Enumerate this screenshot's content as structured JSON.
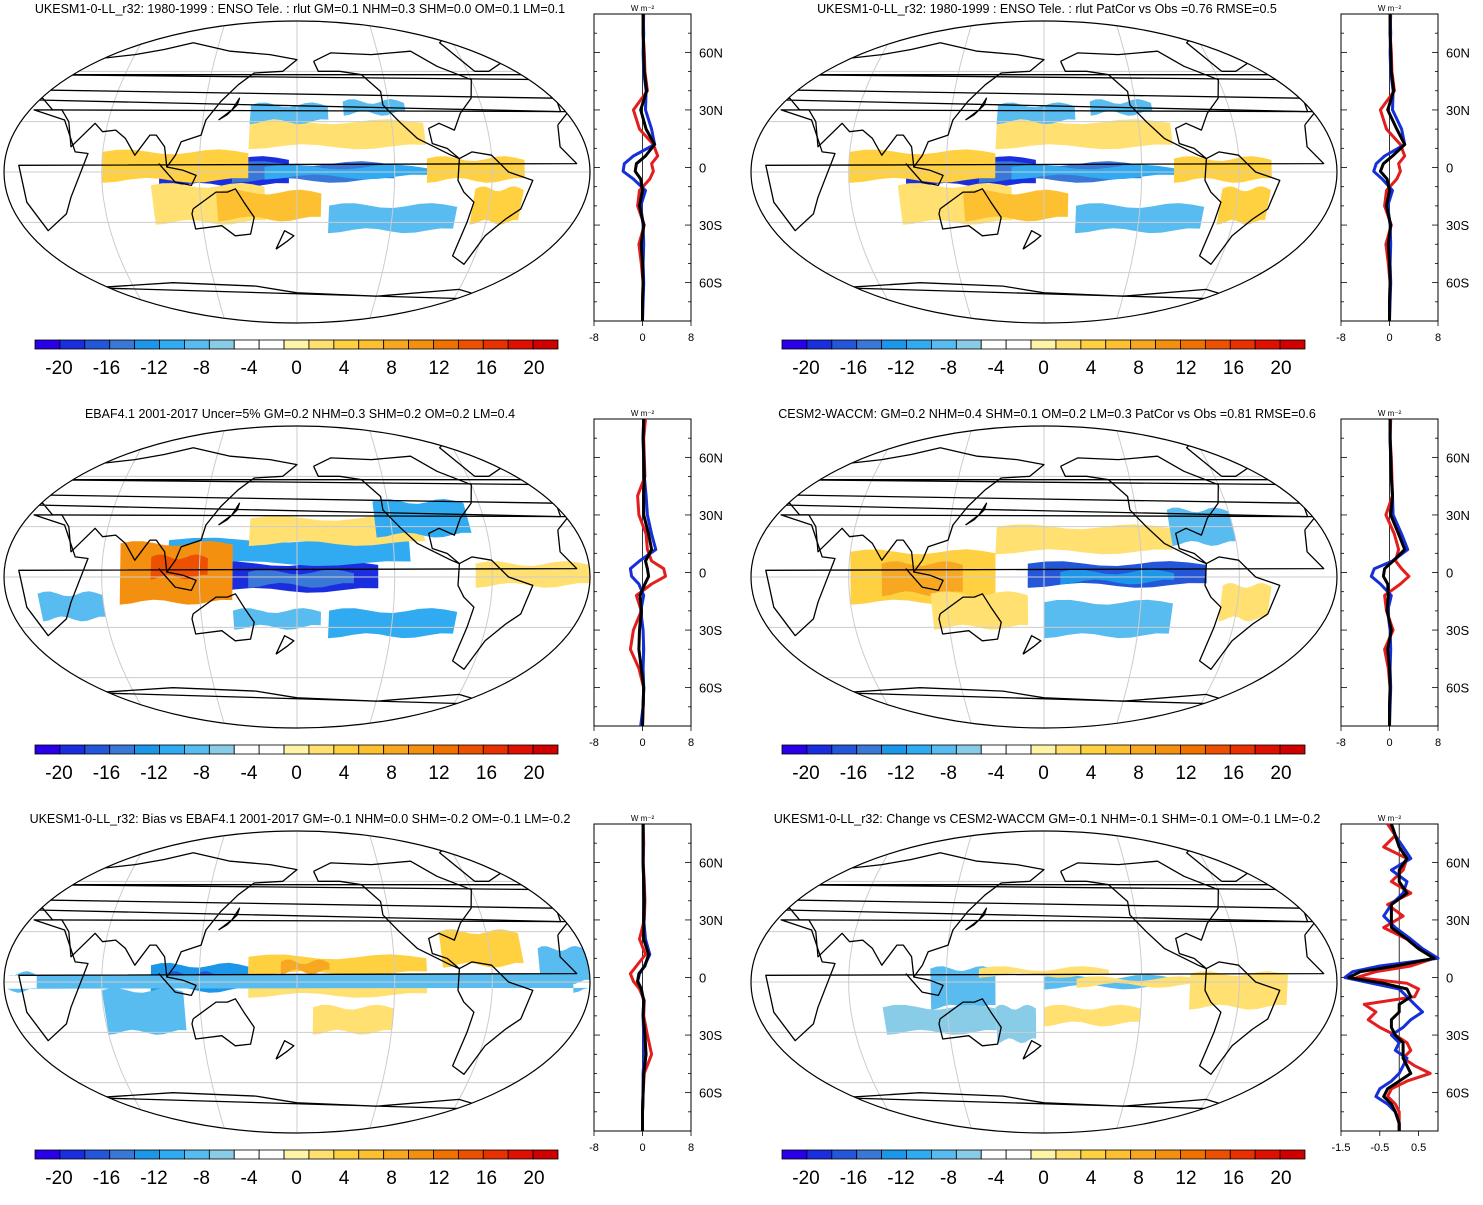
{
  "colorbar": {
    "colors": [
      "#2a00e8",
      "#1a2ee0",
      "#2356d8",
      "#3a78d8",
      "#1c96e8",
      "#30aaf0",
      "#58bcf0",
      "#88cce8",
      "#ffffff",
      "#ffffff",
      "#fff3a8",
      "#ffe070",
      "#ffd040",
      "#fcc030",
      "#f8a820",
      "#f49010",
      "#f07000",
      "#ec5000",
      "#e83000",
      "#e01000",
      "#d00000"
    ],
    "tick_labels": [
      "-20",
      "-16",
      "-12",
      "-8",
      "-4",
      "0",
      "4",
      "8",
      "12",
      "16",
      "20"
    ]
  },
  "chart_data": [
    {
      "type": "heatmap",
      "title": "UKESM1-0-LL_r32: 1980-1999 : ENSO Tele. : rlut GM=0.1 NHM=0.3 SHM=0.0 OM=0.1 LM=0.1",
      "units": "W m⁻²",
      "lat_labels": [
        "60N",
        "30N",
        "0",
        "30S",
        "60S"
      ],
      "lat_values": [
        60,
        30,
        0,
        -30,
        -60
      ],
      "zonal_xlim": [
        -8,
        8
      ],
      "zonal_xticks": [
        "-8",
        "0",
        "8"
      ],
      "series": [
        {
          "name": "red",
          "lat": [
            80,
            70,
            60,
            50,
            40,
            30,
            20,
            12,
            6,
            2,
            -2,
            -6,
            -12,
            -20,
            -30,
            -40,
            -50,
            -60,
            -70,
            -80
          ],
          "values": [
            0.2,
            0.1,
            0.3,
            0.4,
            0.8,
            -1.5,
            -0.5,
            1.8,
            2.5,
            1.5,
            1.8,
            1.2,
            -0.5,
            -0.8,
            0.3,
            -0.6,
            -0.2,
            0.1,
            0.0,
            0.0
          ]
        },
        {
          "name": "blue",
          "lat": [
            80,
            70,
            60,
            50,
            40,
            30,
            20,
            12,
            6,
            2,
            -2,
            -6,
            -12,
            -20,
            -30,
            -40,
            -50,
            -60,
            -70,
            -80
          ],
          "values": [
            0.1,
            0.2,
            0.1,
            0.2,
            0.6,
            0.5,
            1.5,
            2.0,
            -1.5,
            -3.0,
            -3.2,
            -1.5,
            0.5,
            -0.3,
            0.1,
            0.2,
            0.1,
            0.2,
            0.1,
            0.0
          ]
        },
        {
          "name": "black",
          "lat": [
            80,
            70,
            60,
            50,
            40,
            30,
            20,
            12,
            6,
            2,
            -2,
            -6,
            -12,
            -20,
            -30,
            -40,
            -50,
            -60,
            -70,
            -80
          ],
          "values": [
            0.1,
            0.1,
            0.2,
            0.3,
            0.7,
            -0.3,
            0.6,
            2.0,
            0.5,
            -1.0,
            -1.2,
            -0.3,
            0.0,
            -0.5,
            0.2,
            -0.2,
            0.0,
            0.1,
            0.0,
            0.0
          ]
        }
      ]
    },
    {
      "type": "heatmap",
      "title": "UKESM1-0-LL_r32: 1980-1999 : ENSO Tele. : rlut PatCor vs Obs =0.76 RMSE=0.5",
      "units": "W m⁻²",
      "lat_labels": [
        "60N",
        "30N",
        "0",
        "30S",
        "60S"
      ],
      "lat_values": [
        60,
        30,
        0,
        -30,
        -60
      ],
      "zonal_xlim": [
        -8,
        8
      ],
      "zonal_xticks": [
        "-8",
        "0",
        "8"
      ],
      "series": [
        {
          "name": "red",
          "lat": [
            80,
            70,
            60,
            50,
            40,
            30,
            20,
            12,
            6,
            2,
            -2,
            -6,
            -12,
            -20,
            -30,
            -40,
            -50,
            -60,
            -70,
            -80
          ],
          "values": [
            0.2,
            0.1,
            0.3,
            0.4,
            0.8,
            -1.5,
            -0.5,
            1.8,
            2.5,
            1.5,
            1.8,
            1.2,
            -0.5,
            -0.8,
            0.3,
            -0.6,
            -0.2,
            0.1,
            0.0,
            0.0
          ]
        },
        {
          "name": "blue",
          "lat": [
            80,
            70,
            60,
            50,
            40,
            30,
            20,
            12,
            6,
            2,
            -2,
            -6,
            -12,
            -20,
            -30,
            -40,
            -50,
            -60,
            -70,
            -80
          ],
          "values": [
            0.1,
            0.2,
            0.1,
            0.2,
            0.6,
            0.5,
            2.0,
            2.5,
            -0.8,
            -2.2,
            -2.6,
            -1.2,
            0.5,
            -0.3,
            0.1,
            0.2,
            0.1,
            0.2,
            0.1,
            0.0
          ]
        },
        {
          "name": "black",
          "lat": [
            80,
            70,
            60,
            50,
            40,
            30,
            20,
            12,
            6,
            2,
            -2,
            -6,
            -12,
            -20,
            -30,
            -40,
            -50,
            -60,
            -70,
            -80
          ],
          "values": [
            0.1,
            0.1,
            0.2,
            0.3,
            0.7,
            -0.3,
            1.2,
            2.5,
            0.5,
            -1.0,
            -1.5,
            -0.4,
            0.0,
            -0.5,
            0.2,
            -0.2,
            0.0,
            0.1,
            0.0,
            0.0
          ]
        }
      ]
    },
    {
      "type": "heatmap",
      "title": "EBAF4.1 2001-2017 Uncer=5% GM=0.2 NHM=0.3 SHM=0.2 OM=0.2 LM=0.4",
      "units": "W m⁻²",
      "lat_labels": [
        "60N",
        "30N",
        "0",
        "30S",
        "60S"
      ],
      "lat_values": [
        60,
        30,
        0,
        -30,
        -60
      ],
      "zonal_xlim": [
        -8,
        8
      ],
      "zonal_xticks": [
        "-8",
        "0",
        "8"
      ],
      "series": [
        {
          "name": "red",
          "lat": [
            80,
            70,
            60,
            50,
            40,
            30,
            20,
            12,
            6,
            2,
            -2,
            -6,
            -12,
            -20,
            -30,
            -40,
            -50,
            -60,
            -70,
            -80
          ],
          "values": [
            0.5,
            0.2,
            0.3,
            0.4,
            -0.8,
            -0.6,
            0.6,
            0.8,
            1.5,
            3.5,
            3.8,
            1.5,
            -1.0,
            -0.2,
            -1.5,
            -2.0,
            -0.6,
            0.2,
            0.1,
            0.0
          ]
        },
        {
          "name": "blue",
          "lat": [
            80,
            70,
            60,
            50,
            40,
            30,
            20,
            12,
            6,
            2,
            -2,
            -6,
            -12,
            -20,
            -30,
            -40,
            -50,
            -60,
            -70,
            -80
          ],
          "values": [
            0.2,
            0.1,
            0.2,
            0.3,
            0.6,
            0.8,
            1.5,
            2.2,
            -0.5,
            -2.0,
            -1.8,
            -0.6,
            0.2,
            -0.3,
            0.1,
            0.2,
            0.1,
            0.2,
            0.1,
            -0.3
          ]
        },
        {
          "name": "black",
          "lat": [
            80,
            70,
            60,
            50,
            40,
            30,
            20,
            12,
            6,
            2,
            -2,
            -6,
            -12,
            -20,
            -30,
            -40,
            -50,
            -60,
            -70,
            -80
          ],
          "values": [
            0.2,
            0.1,
            0.2,
            0.3,
            0.2,
            0.2,
            1.0,
            1.5,
            0.5,
            0.8,
            1.0,
            0.4,
            -0.4,
            -0.2,
            -0.5,
            -0.6,
            -0.2,
            0.2,
            0.1,
            0.0
          ]
        }
      ]
    },
    {
      "type": "heatmap",
      "title": "CESM2-WACCM: GM=0.2 NHM=0.4 SHM=0.1 OM=0.2 LM=0.3 PatCor vs Obs =0.81 RMSE=0.6",
      "units": "W m⁻²",
      "lat_labels": [
        "60N",
        "30N",
        "0",
        "30S",
        "60S"
      ],
      "lat_values": [
        60,
        30,
        0,
        -30,
        -60
      ],
      "zonal_xlim": [
        -8,
        8
      ],
      "zonal_xticks": [
        "-8",
        "0",
        "8"
      ],
      "series": [
        {
          "name": "red",
          "lat": [
            80,
            70,
            60,
            50,
            40,
            30,
            20,
            12,
            6,
            2,
            -2,
            -6,
            -12,
            -20,
            -30,
            -40,
            -50,
            -60,
            -70,
            -80
          ],
          "values": [
            0.2,
            0.1,
            0.3,
            0.4,
            0.5,
            -0.6,
            0.8,
            1.5,
            1.0,
            2.0,
            3.2,
            1.8,
            -0.8,
            -0.5,
            0.6,
            -0.8,
            -0.2,
            0.1,
            0.0,
            0.0
          ]
        },
        {
          "name": "blue",
          "lat": [
            80,
            70,
            60,
            50,
            40,
            30,
            20,
            12,
            6,
            2,
            -2,
            -6,
            -12,
            -20,
            -30,
            -40,
            -50,
            -60,
            -70,
            -80
          ],
          "values": [
            0.1,
            0.1,
            0.2,
            0.3,
            0.5,
            0.6,
            2.0,
            3.0,
            0.5,
            -2.5,
            -3.0,
            -1.5,
            0.3,
            -0.3,
            0.1,
            0.2,
            0.1,
            0.2,
            0.1,
            0.0
          ]
        },
        {
          "name": "black",
          "lat": [
            80,
            70,
            60,
            50,
            40,
            30,
            20,
            12,
            6,
            2,
            -2,
            -6,
            -12,
            -20,
            -30,
            -40,
            -50,
            -60,
            -70,
            -80
          ],
          "values": [
            0.1,
            0.1,
            0.2,
            0.3,
            0.5,
            0.2,
            1.5,
            2.5,
            0.6,
            -0.8,
            -1.0,
            -0.3,
            -0.2,
            -0.4,
            0.3,
            -0.3,
            0.0,
            0.1,
            0.0,
            0.0
          ]
        }
      ]
    },
    {
      "type": "heatmap",
      "title": "UKESM1-0-LL_r32: Bias vs EBAF4.1 2001-2017 GM=-0.1 NHM=0.0 SHM=-0.2 OM=-0.1 LM=-0.2",
      "units": "W m⁻²",
      "lat_labels": [
        "60N",
        "30N",
        "0",
        "30S",
        "60S"
      ],
      "lat_values": [
        60,
        30,
        0,
        -30,
        -60
      ],
      "zonal_xlim": [
        -8,
        8
      ],
      "zonal_xticks": [
        "-8",
        "0",
        "8"
      ],
      "series": [
        {
          "name": "red",
          "lat": [
            80,
            70,
            60,
            50,
            40,
            30,
            20,
            12,
            6,
            2,
            -2,
            -6,
            -12,
            -20,
            -30,
            -40,
            -50,
            -60,
            -70,
            -80
          ],
          "values": [
            0.1,
            0.2,
            0.1,
            0.3,
            0.4,
            0.3,
            -0.5,
            0.5,
            -1.0,
            -2.0,
            -1.5,
            -0.5,
            0.3,
            0.2,
            0.8,
            1.5,
            0.3,
            0.1,
            0.0,
            0.0
          ]
        },
        {
          "name": "blue",
          "lat": [
            80,
            70,
            60,
            50,
            40,
            30,
            20,
            12,
            6,
            2,
            -2,
            -6,
            -12,
            -20,
            -30,
            -40,
            -50,
            -60,
            -70,
            -80
          ],
          "values": [
            0.1,
            0.1,
            0.1,
            0.2,
            0.3,
            0.2,
            0.5,
            1.2,
            0.3,
            -0.5,
            -0.8,
            -0.2,
            0.2,
            0.1,
            0.2,
            0.3,
            0.1,
            0.1,
            0.0,
            0.0
          ]
        },
        {
          "name": "black",
          "lat": [
            80,
            70,
            60,
            50,
            40,
            30,
            20,
            12,
            6,
            2,
            -2,
            -6,
            -12,
            -20,
            -30,
            -40,
            -50,
            -60,
            -70,
            -80
          ],
          "values": [
            0.1,
            0.1,
            0.1,
            0.2,
            0.3,
            0.2,
            0.2,
            1.0,
            0.4,
            -0.6,
            -0.8,
            -0.2,
            0.2,
            0.1,
            0.4,
            0.6,
            0.2,
            0.1,
            0.0,
            0.0
          ]
        }
      ]
    },
    {
      "type": "heatmap",
      "title": "UKESM1-0-LL_r32: Change vs CESM2-WACCM GM=-0.1 NHM=-0.1 SHM=-0.1 OM=-0.1 LM=-0.2",
      "units": "W m⁻²",
      "lat_labels": [
        "60N",
        "30N",
        "0",
        "30S",
        "60S"
      ],
      "lat_values": [
        60,
        30,
        0,
        -30,
        -60
      ],
      "zonal_xlim": [
        -1.5,
        1.0
      ],
      "zonal_xticks": [
        "-1.5",
        "-0.5",
        "0.5"
      ],
      "series": [
        {
          "name": "red",
          "lat": [
            80,
            74,
            68,
            62,
            56,
            50,
            44,
            38,
            32,
            26,
            20,
            15,
            10,
            6,
            3,
            0,
            -3,
            -6,
            -10,
            -14,
            -18,
            -22,
            -26,
            -30,
            -34,
            -38,
            -42,
            -46,
            -50,
            -54,
            -58,
            -62,
            -66,
            -70,
            -76,
            -80
          ],
          "values": [
            -0.3,
            -0.1,
            -0.4,
            0.2,
            0.1,
            -0.2,
            0.3,
            -0.3,
            0.1,
            -0.4,
            0.2,
            0.5,
            0.9,
            0.3,
            -0.6,
            -1.1,
            0.2,
            0.5,
            0.4,
            -0.9,
            -0.6,
            -0.8,
            -0.5,
            -0.1,
            0.2,
            0.3,
            0.1,
            0.4,
            0.8,
            0.2,
            -0.2,
            -0.3,
            -0.1,
            0.0,
            0.0,
            0.0
          ]
        },
        {
          "name": "blue",
          "lat": [
            80,
            74,
            68,
            62,
            56,
            50,
            44,
            38,
            32,
            26,
            20,
            15,
            10,
            6,
            3,
            0,
            -3,
            -6,
            -10,
            -14,
            -18,
            -22,
            -26,
            -30,
            -34,
            -38,
            -42,
            -46,
            -50,
            -54,
            -58,
            -62,
            -66,
            -70,
            -76,
            -80
          ],
          "values": [
            -0.2,
            -0.1,
            0.1,
            0.3,
            -0.2,
            0.2,
            0.1,
            -0.2,
            -0.4,
            -0.1,
            0.3,
            0.6,
            1.0,
            -0.5,
            -1.2,
            -1.4,
            -0.7,
            0.0,
            0.2,
            0.4,
            0.6,
            0.3,
            0.1,
            -0.2,
            0.0,
            -0.1,
            0.2,
            0.1,
            0.0,
            -0.2,
            -0.5,
            -0.6,
            -0.3,
            -0.1,
            0.0,
            0.0
          ]
        },
        {
          "name": "black",
          "lat": [
            80,
            74,
            68,
            62,
            56,
            50,
            44,
            38,
            32,
            26,
            20,
            15,
            10,
            6,
            3,
            0,
            -3,
            -6,
            -10,
            -14,
            -18,
            -22,
            -26,
            -30,
            -34,
            -38,
            -42,
            -46,
            -50,
            -54,
            -58,
            -62,
            -66,
            -70,
            -76,
            -80
          ],
          "values": [
            -0.2,
            -0.1,
            0.0,
            0.2,
            0.0,
            0.0,
            0.2,
            -0.2,
            -0.2,
            -0.2,
            0.2,
            0.5,
            0.9,
            -0.1,
            -1.0,
            -1.3,
            -0.4,
            0.2,
            0.3,
            0.0,
            0.0,
            -0.2,
            -0.2,
            -0.1,
            0.1,
            0.1,
            0.1,
            0.2,
            0.3,
            0.0,
            -0.3,
            -0.4,
            -0.2,
            -0.1,
            0.0,
            0.0
          ]
        }
      ]
    }
  ]
}
